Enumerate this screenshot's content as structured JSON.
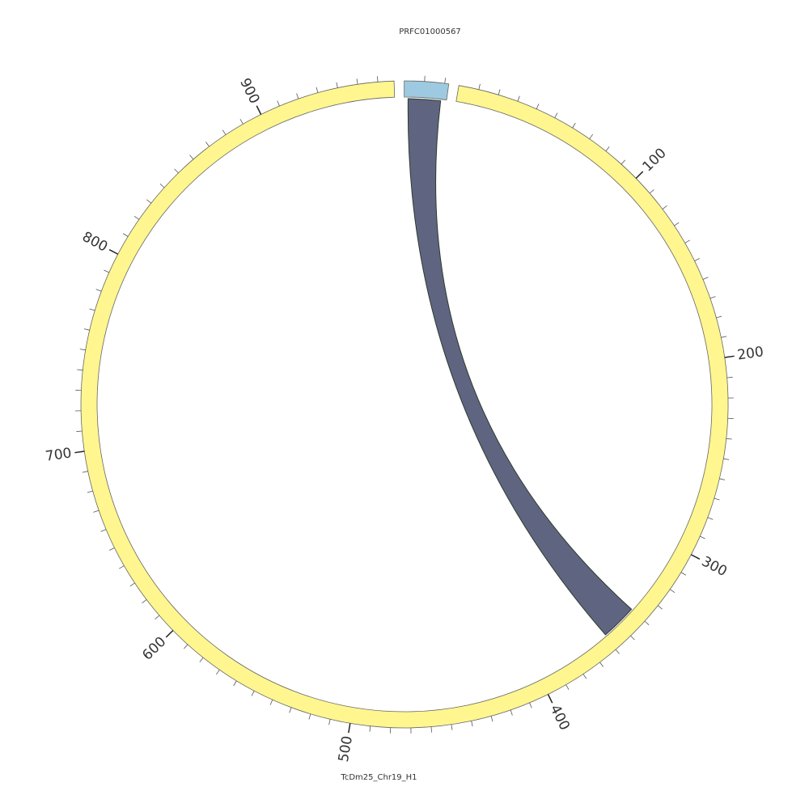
{
  "chart_data": {
    "type": "chord",
    "segments": [
      {
        "name": "PRFC01000567",
        "length": 22,
        "color": "#9ecae1"
      },
      {
        "name": "TcDm25_Chr19_H1",
        "length": 968,
        "color": "#fff68f",
        "ticks": [
          100,
          200,
          300,
          400,
          500,
          600,
          700,
          800,
          900
        ]
      }
    ],
    "minor_tick_step": 10,
    "links": [
      {
        "source": {
          "segment": 0,
          "start": 2,
          "end": 19
        },
        "target": {
          "segment": 1,
          "start": 340,
          "end": 359
        },
        "color": "#5f6580"
      }
    ]
  }
}
